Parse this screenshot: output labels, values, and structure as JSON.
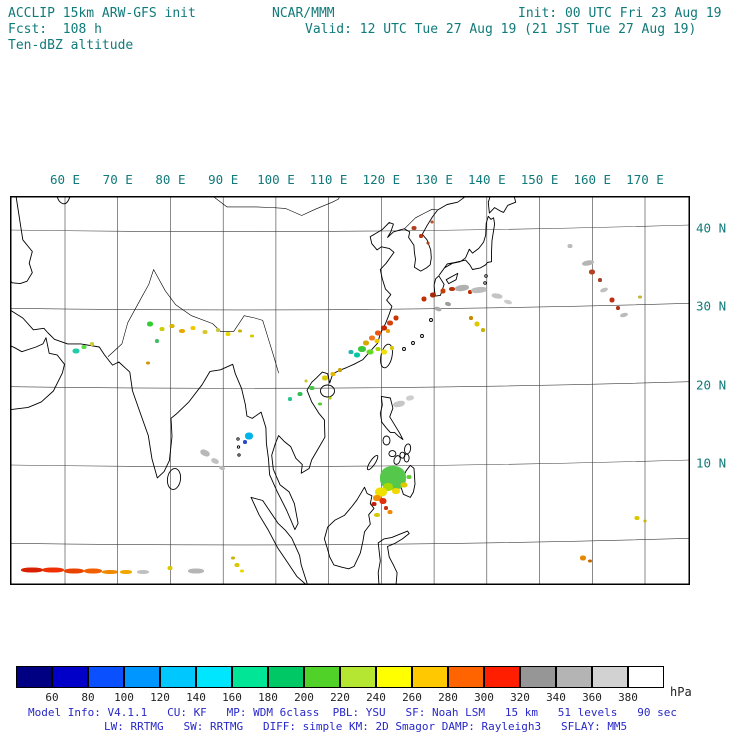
{
  "header": {
    "title": "ACCLIP 15km ARW-GFS init",
    "fcst": "Fcst:  108 h",
    "field": "Ten-dBZ altitude",
    "center": "NCAR/MMM",
    "valid": "Valid: 12 UTC Tue 27 Aug 19 (21 JST Tue 27 Aug 19)",
    "init": "Init: 00 UTC Fri 23 Aug 19"
  },
  "map": {
    "lon_labels": [
      "60 E",
      "70 E",
      "80 E",
      "90 E",
      "100 E",
      "110 E",
      "120 E",
      "130 E",
      "140 E",
      "150 E",
      "160 E",
      "170 E"
    ],
    "lat_labels": [
      "40 N",
      "30 N",
      "20 N",
      "10 N"
    ]
  },
  "colorbar": {
    "unit": "hPa",
    "tick_labels": [
      "60",
      "80",
      "100",
      "120",
      "140",
      "160",
      "180",
      "200",
      "220",
      "240",
      "260",
      "280",
      "300",
      "320",
      "340",
      "360",
      "380"
    ],
    "colors": [
      "#000082",
      "#0000c8",
      "#0a50ff",
      "#0096ff",
      "#00c8ff",
      "#00e6ff",
      "#00e696",
      "#00c864",
      "#50d228",
      "#b4e632",
      "#ffff00",
      "#ffc800",
      "#ff6400",
      "#ff1e00",
      "#969696",
      "#b4b4b4",
      "#d2d2d2",
      "#ffffff"
    ]
  },
  "footer": {
    "line1": "Model Info: V4.1.1   CU: KF   MP: WDM 6class  PBL: YSU   SF: Noah LSM   15 km   51 levels   90 sec",
    "line2": "LW: RRTMG   SW: RRTMG   DIFF: simple KM: 2D Smagor DAMP: Rayleigh3   SFLAY: MM5"
  },
  "points_format": "[cx,cy,width,height,color,rotation_deg]",
  "points": [
    [
      414,
      228,
      5,
      4,
      "#b04020",
      0
    ],
    [
      421,
      236,
      4,
      4,
      "#c03010",
      0
    ],
    [
      428,
      243,
      3,
      3,
      "#a84018",
      0
    ],
    [
      432,
      222,
      3,
      3,
      "#b85020",
      0
    ],
    [
      424,
      299,
      5,
      5,
      "#c03000",
      0
    ],
    [
      433,
      295,
      6,
      5,
      "#a52a0a",
      0
    ],
    [
      443,
      291,
      5,
      5,
      "#c83c00",
      0
    ],
    [
      452,
      289,
      6,
      4,
      "#b43200",
      0
    ],
    [
      470,
      292,
      4,
      4,
      "#c03000",
      0
    ],
    [
      438,
      309,
      7,
      4,
      "#aaaaaa",
      20
    ],
    [
      448,
      304,
      6,
      4,
      "#9e9e9e",
      15
    ],
    [
      462,
      288,
      14,
      6,
      "#b0b0b0",
      -8
    ],
    [
      479,
      290,
      16,
      6,
      "#bcbcbc",
      -5
    ],
    [
      497,
      296,
      11,
      5,
      "#c4c4c4",
      10
    ],
    [
      508,
      302,
      8,
      4,
      "#cccccc",
      15
    ],
    [
      396,
      318,
      5,
      5,
      "#cc3300",
      0
    ],
    [
      390,
      323,
      6,
      5,
      "#d84010",
      0
    ],
    [
      384,
      328,
      6,
      5,
      "#c82800",
      0
    ],
    [
      378,
      333,
      6,
      5,
      "#e85510",
      0
    ],
    [
      372,
      338,
      6,
      5,
      "#f07820",
      0
    ],
    [
      366,
      343,
      6,
      5,
      "#d8a800",
      0
    ],
    [
      377,
      341,
      5,
      4,
      "#f0c800",
      0
    ],
    [
      388,
      331,
      4,
      4,
      "#f0a000",
      0
    ],
    [
      362,
      349,
      8,
      6,
      "#3cc83c",
      0
    ],
    [
      370,
      352,
      7,
      5,
      "#66d822",
      0
    ],
    [
      357,
      355,
      6,
      5,
      "#00c8a0",
      0
    ],
    [
      378,
      349,
      5,
      4,
      "#a8d800",
      0
    ],
    [
      384,
      352,
      6,
      5,
      "#f0e000",
      0
    ],
    [
      392,
      348,
      4,
      4,
      "#d8c800",
      0
    ],
    [
      351,
      352,
      5,
      4,
      "#20b4b4",
      0
    ],
    [
      477,
      324,
      5,
      5,
      "#e0c800",
      0
    ],
    [
      483,
      330,
      4,
      4,
      "#c8b400",
      0
    ],
    [
      471,
      318,
      4,
      4,
      "#c88800",
      0
    ],
    [
      592,
      272,
      6,
      5,
      "#b44028",
      0
    ],
    [
      600,
      280,
      4,
      4,
      "#a04028",
      0
    ],
    [
      612,
      300,
      5,
      5,
      "#c03010",
      0
    ],
    [
      618,
      308,
      4,
      4,
      "#b03418",
      0
    ],
    [
      588,
      263,
      12,
      5,
      "#b5b5b5",
      -10
    ],
    [
      604,
      290,
      8,
      4,
      "#c0c0c0",
      -20
    ],
    [
      624,
      315,
      8,
      4,
      "#bbbbbb",
      -15
    ],
    [
      570,
      246,
      5,
      4,
      "#bbbbbb",
      0
    ],
    [
      640,
      297,
      4,
      3,
      "#c8b430",
      0
    ],
    [
      325,
      378,
      6,
      5,
      "#d8c800",
      0
    ],
    [
      333,
      374,
      5,
      4,
      "#e8b400",
      0
    ],
    [
      340,
      370,
      4,
      4,
      "#c8a000",
      0
    ],
    [
      312,
      388,
      5,
      4,
      "#44c844",
      0
    ],
    [
      300,
      394,
      5,
      4,
      "#33bb55",
      0
    ],
    [
      290,
      399,
      4,
      4,
      "#22c888",
      0
    ],
    [
      320,
      404,
      4,
      3,
      "#55cc33",
      0
    ],
    [
      330,
      398,
      3,
      3,
      "#a8c800",
      0
    ],
    [
      306,
      381,
      3,
      3,
      "#c8c820",
      0
    ],
    [
      150,
      324,
      6,
      5,
      "#33cc33",
      0
    ],
    [
      162,
      329,
      5,
      4,
      "#cccc00",
      0
    ],
    [
      172,
      326,
      5,
      4,
      "#d8b400",
      0
    ],
    [
      182,
      331,
      6,
      4,
      "#e8a800",
      0
    ],
    [
      193,
      328,
      5,
      4,
      "#f0c800",
      0
    ],
    [
      205,
      332,
      5,
      4,
      "#d8c830",
      0
    ],
    [
      218,
      330,
      4,
      4,
      "#c8c844",
      0
    ],
    [
      228,
      334,
      5,
      4,
      "#e8d800",
      0
    ],
    [
      240,
      331,
      4,
      3,
      "#c8b400",
      0
    ],
    [
      252,
      336,
      4,
      3,
      "#d8c800",
      0
    ],
    [
      157,
      341,
      4,
      4,
      "#44bb66",
      0
    ],
    [
      148,
      363,
      4,
      3,
      "#cc9900",
      0
    ],
    [
      76,
      351,
      7,
      5,
      "#22ccaa",
      0
    ],
    [
      84,
      347,
      5,
      4,
      "#55dd44",
      0
    ],
    [
      92,
      344,
      4,
      4,
      "#cccc33",
      0
    ],
    [
      249,
      436,
      8,
      7,
      "#00b4e8",
      0
    ],
    [
      245,
      442,
      4,
      4,
      "#2848c8",
      0
    ],
    [
      205,
      453,
      10,
      6,
      "#b8b8b8",
      25
    ],
    [
      215,
      461,
      8,
      5,
      "#c2c2c2",
      25
    ],
    [
      222,
      468,
      6,
      4,
      "#bbbbbb",
      20
    ],
    [
      399,
      404,
      12,
      6,
      "#c6c6c6",
      -12
    ],
    [
      410,
      398,
      8,
      5,
      "#cecece",
      -10
    ],
    [
      393,
      478,
      26,
      24,
      "#55c84c",
      0
    ],
    [
      388,
      487,
      10,
      8,
      "#a8d800",
      0
    ],
    [
      381,
      492,
      12,
      9,
      "#f0e000",
      0
    ],
    [
      377,
      498,
      8,
      6,
      "#f09000",
      0
    ],
    [
      383,
      501,
      7,
      6,
      "#e03010",
      0
    ],
    [
      374,
      504,
      5,
      4,
      "#c02010",
      0
    ],
    [
      396,
      491,
      8,
      6,
      "#f0d800",
      0
    ],
    [
      404,
      485,
      7,
      5,
      "#e0c800",
      0
    ],
    [
      409,
      477,
      5,
      4,
      "#66cc33",
      0
    ],
    [
      386,
      508,
      4,
      4,
      "#c83010",
      0
    ],
    [
      390,
      512,
      5,
      4,
      "#f08800",
      0
    ],
    [
      377,
      515,
      6,
      4,
      "#d8c800",
      0
    ],
    [
      32,
      570,
      22,
      5,
      "#d82000",
      0
    ],
    [
      53,
      570,
      22,
      5,
      "#f03000",
      0
    ],
    [
      74,
      571,
      20,
      5,
      "#e84400",
      0
    ],
    [
      93,
      571,
      18,
      5,
      "#f06000",
      0
    ],
    [
      110,
      572,
      16,
      4,
      "#f08800",
      0
    ],
    [
      126,
      572,
      12,
      4,
      "#f0a800",
      0
    ],
    [
      143,
      572,
      12,
      4,
      "#c0c0c0",
      0
    ],
    [
      196,
      571,
      16,
      5,
      "#b5b5b5",
      0
    ],
    [
      170,
      568,
      5,
      4,
      "#d8c800",
      0
    ],
    [
      237,
      565,
      5,
      4,
      "#d8c800",
      0
    ],
    [
      233,
      558,
      4,
      3,
      "#c8b400",
      0
    ],
    [
      242,
      571,
      4,
      3,
      "#e8d800",
      0
    ],
    [
      583,
      558,
      6,
      5,
      "#e88800",
      0
    ],
    [
      590,
      561,
      4,
      3,
      "#c86600",
      0
    ],
    [
      637,
      518,
      5,
      4,
      "#d8c800",
      0
    ],
    [
      645,
      521,
      3,
      3,
      "#c8b400",
      0
    ]
  ]
}
